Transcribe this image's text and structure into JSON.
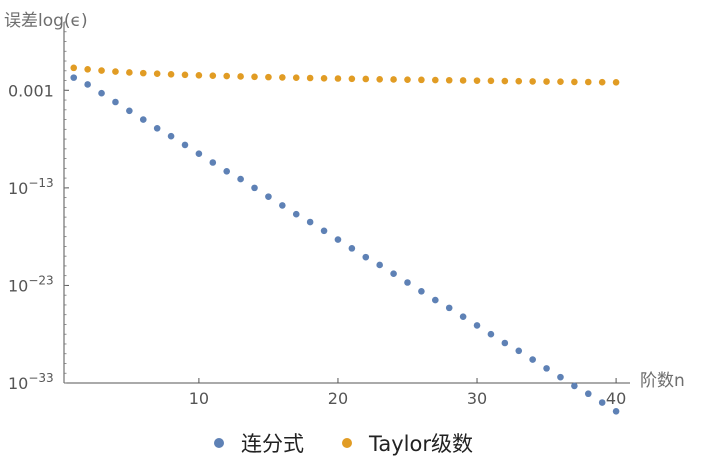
{
  "chart_data": {
    "type": "scatter",
    "title": "",
    "xlabel": "阶数n",
    "ylabel": "误差log(ϵ)",
    "xscale": "linear",
    "yscale": "log",
    "xlim": [
      0.3,
      41
    ],
    "ylim": [
      1e-33,
      10000.0
    ],
    "xticks": [
      10,
      20,
      30,
      40
    ],
    "xtick_labels": [
      "10",
      "20",
      "30",
      "40"
    ],
    "yticks": [
      {
        "value": 0.001,
        "base": "0.001",
        "exp": ""
      },
      {
        "value": 1e-13,
        "base": "10",
        "exp": "−13"
      },
      {
        "value": 1e-23,
        "base": "10",
        "exp": "−23"
      },
      {
        "value": 1e-33,
        "base": "10",
        "exp": "−33"
      }
    ],
    "grid": false,
    "legend_position": "bottom",
    "x": [
      1,
      2,
      3,
      4,
      5,
      6,
      7,
      8,
      9,
      10,
      11,
      12,
      13,
      14,
      15,
      16,
      17,
      18,
      19,
      20,
      21,
      22,
      23,
      24,
      25,
      26,
      27,
      28,
      29,
      30,
      31,
      32,
      33,
      34,
      35,
      36,
      37,
      38,
      39,
      40
    ],
    "series": [
      {
        "name": "连分式",
        "color": "#5e81b5",
        "log10_values": [
          -1.7,
          -2.4,
          -3.3,
          -4.2,
          -5.1,
          -6.0,
          -6.9,
          -7.7,
          -8.6,
          -9.5,
          -10.4,
          -11.3,
          -12.1,
          -13.0,
          -13.9,
          -14.8,
          -15.7,
          -16.5,
          -17.4,
          -18.3,
          -19.2,
          -20.1,
          -20.9,
          -21.8,
          -22.7,
          -23.6,
          -24.5,
          -25.3,
          -26.2,
          -27.1,
          -28.0,
          -28.9,
          -29.7,
          -30.6,
          -31.5,
          -32.4,
          -33.3,
          -34.1,
          -35.0,
          -35.9
        ]
      },
      {
        "name": "Taylor级数",
        "color": "#e19c24",
        "log10_values": [
          -0.7,
          -0.85,
          -0.98,
          -1.08,
          -1.17,
          -1.24,
          -1.3,
          -1.36,
          -1.41,
          -1.46,
          -1.5,
          -1.54,
          -1.58,
          -1.62,
          -1.65,
          -1.68,
          -1.71,
          -1.74,
          -1.77,
          -1.79,
          -1.82,
          -1.84,
          -1.87,
          -1.89,
          -1.91,
          -1.93,
          -1.95,
          -1.97,
          -1.99,
          -2.01,
          -2.03,
          -2.05,
          -2.07,
          -2.09,
          -2.1,
          -2.12,
          -2.14,
          -2.15,
          -2.17,
          -2.18
        ]
      }
    ]
  }
}
